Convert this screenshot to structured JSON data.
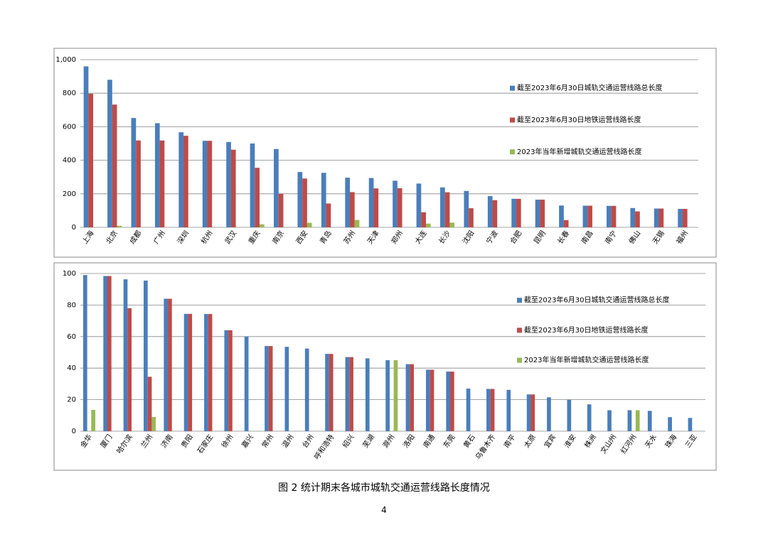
{
  "chart_data": [
    {
      "type": "bar",
      "categories": [
        "上海",
        "北京",
        "成都",
        "广州",
        "深圳",
        "杭州",
        "武汉",
        "重庆",
        "南京",
        "西安",
        "青岛",
        "苏州",
        "天津",
        "郑州",
        "大连",
        "长沙",
        "沈阳",
        "宁波",
        "合肥",
        "昆明",
        "长春",
        "南昌",
        "南宁",
        "佛山",
        "无锡",
        "福州"
      ],
      "series": [
        {
          "name": "截至2023年6月30日城轨交通运营线路总长度",
          "color": "#4a7ebb",
          "values": [
            960,
            880,
            652,
            621,
            567,
            516,
            509,
            500,
            467,
            330,
            325,
            296,
            294,
            278,
            261,
            238,
            217,
            186,
            170,
            165,
            130,
            129,
            128,
            115,
            112,
            110
          ]
        },
        {
          "name": "截至2023年6月30日地铁运营线路长度",
          "color": "#be4b48",
          "values": [
            797,
            732,
            518,
            518,
            546,
            516,
            463,
            355,
            200,
            291,
            142,
            210,
            232,
            233,
            90,
            209,
            114,
            162,
            170,
            165,
            43,
            129,
            128,
            95,
            112,
            110
          ]
        },
        {
          "name": "2023年当年新增城轨交通运营线路长度",
          "color": "#98b954",
          "values": [
            0,
            9,
            0,
            0,
            0,
            0,
            0,
            18,
            0,
            27,
            0,
            44,
            0,
            0,
            22,
            28,
            0,
            0,
            0,
            0,
            0,
            0,
            0,
            0,
            0,
            0
          ]
        }
      ],
      "ylim": [
        0,
        1000
      ],
      "yticks": [
        0,
        200,
        400,
        600,
        800,
        {
          "value": 1000,
          "label": "1,000"
        }
      ],
      "grid": true,
      "legend": "right"
    },
    {
      "type": "bar",
      "categories": [
        "金华",
        "厦门",
        "哈尔滨",
        "兰州",
        "济南",
        "贵阳",
        "石家庄",
        "徐州",
        "嘉兴",
        "常州",
        "温州",
        "台州",
        "呼和浩特",
        "绍兴",
        "芜湖",
        "滁州",
        "洛阳",
        "南通",
        "东莞",
        "黄石",
        "乌鲁木齐",
        "南平",
        "太原",
        "宜宾",
        "淮安",
        "株洲",
        "文山州",
        "红河州",
        "天水",
        "珠海",
        "三亚"
      ],
      "series": [
        {
          "name": "截至2023年6月30日城轨交通运营线路总长度",
          "color": "#4a7ebb",
          "values": [
            99,
            98.4,
            96.3,
            95.5,
            84,
            74.4,
            74.3,
            64,
            60,
            54,
            53.5,
            52.4,
            49,
            47,
            46.2,
            45,
            42.5,
            39,
            37.8,
            27,
            26.8,
            26.2,
            23.3,
            21.5,
            20,
            17,
            13.3,
            13.3,
            12.9,
            8.9,
            8.4
          ]
        },
        {
          "name": "截至2023年6月30日地铁运营线路长度",
          "color": "#be4b48",
          "values": [
            0,
            98.4,
            78,
            34.5,
            84,
            74.4,
            74.3,
            64,
            0,
            54,
            0,
            0,
            49,
            47,
            0,
            0,
            42.5,
            39,
            37.8,
            0,
            26.8,
            0,
            23.3,
            0,
            0,
            0,
            0,
            0,
            0,
            0,
            0
          ]
        },
        {
          "name": "2023年当年新增城轨交通运营线路长度",
          "color": "#98b954",
          "values": [
            13.5,
            0,
            0,
            9,
            0,
            0,
            0,
            0,
            0,
            0,
            0,
            0,
            0,
            0,
            0,
            45,
            0,
            0,
            0,
            0,
            0,
            0,
            0,
            0,
            0,
            0,
            0,
            13.3,
            0,
            0,
            0
          ]
        }
      ],
      "ylim": [
        0,
        100
      ],
      "yticks": [
        0,
        20,
        40,
        60,
        80,
        100
      ],
      "grid": true,
      "legend": "right"
    }
  ],
  "caption": "图 2 统计期末各城市城轨交通运营线路长度情况",
  "page_number": "4"
}
